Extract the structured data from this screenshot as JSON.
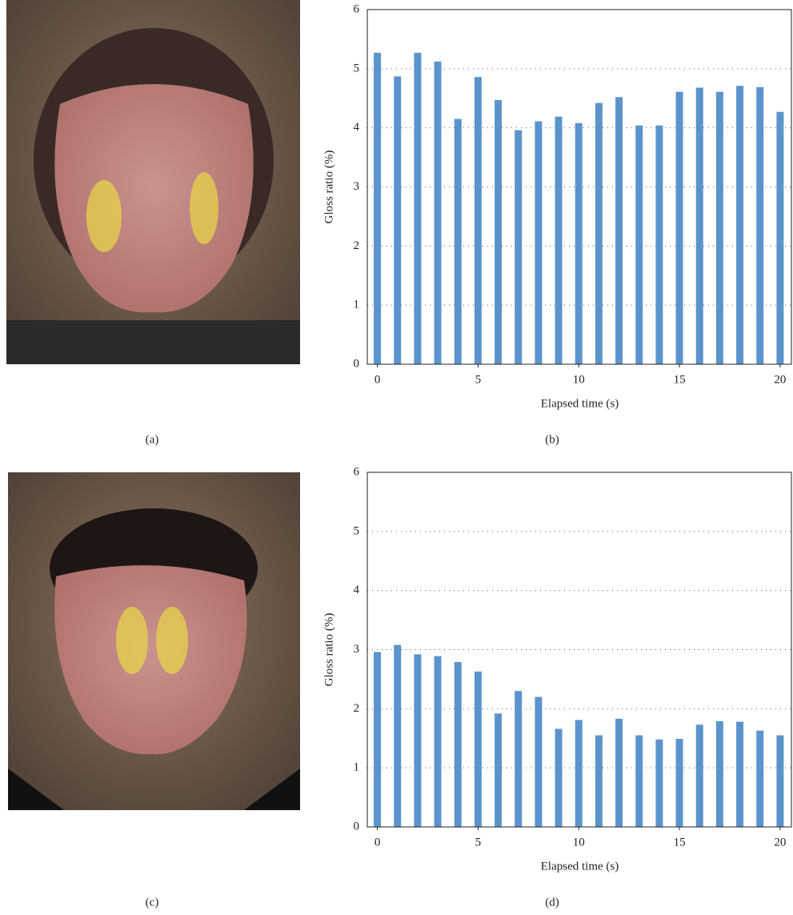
{
  "image_panels": [
    {
      "label": "(a)"
    },
    {
      "label": "(c)"
    }
  ],
  "chart_data": [
    {
      "type": "bar",
      "panel_label": "(b)",
      "xlabel": "Elapsed time (s)",
      "ylabel": "Gloss ratio (%)",
      "x": [
        0,
        1,
        2,
        3,
        4,
        5,
        6,
        7,
        8,
        9,
        10,
        11,
        12,
        13,
        14,
        15,
        16,
        17,
        18,
        19,
        20
      ],
      "values": [
        5.27,
        4.87,
        5.27,
        5.12,
        4.15,
        4.86,
        4.47,
        3.96,
        4.11,
        4.19,
        4.08,
        4.42,
        4.52,
        4.04,
        4.04,
        4.61,
        4.68,
        4.61,
        4.71,
        4.69,
        4.27
      ],
      "color": "#5b94cc",
      "xlim": [
        -0.5,
        20.6
      ],
      "xticks": [
        0,
        5,
        10,
        15,
        20
      ],
      "ylim": [
        0,
        6
      ],
      "yticks": [
        0,
        1,
        2,
        3,
        4,
        5,
        6
      ],
      "grid": true
    },
    {
      "type": "bar",
      "panel_label": "(d)",
      "xlabel": "Elapsed time (s)",
      "ylabel": "Gloss ratio (%)",
      "x": [
        0,
        1,
        2,
        3,
        4,
        5,
        6,
        7,
        8,
        9,
        10,
        11,
        12,
        13,
        14,
        15,
        16,
        17,
        18,
        19,
        20
      ],
      "values": [
        2.96,
        3.08,
        2.92,
        2.89,
        2.79,
        2.63,
        1.92,
        2.3,
        2.2,
        1.66,
        1.81,
        1.55,
        1.83,
        1.55,
        1.48,
        1.49,
        1.73,
        1.79,
        1.78,
        1.63,
        1.55
      ],
      "color": "#5b94cc",
      "xlim": [
        -0.5,
        20.6
      ],
      "xticks": [
        0,
        5,
        10,
        15,
        20
      ],
      "ylim": [
        0,
        6
      ],
      "yticks": [
        0,
        1,
        2,
        3,
        4,
        5,
        6
      ],
      "grid": true
    }
  ]
}
